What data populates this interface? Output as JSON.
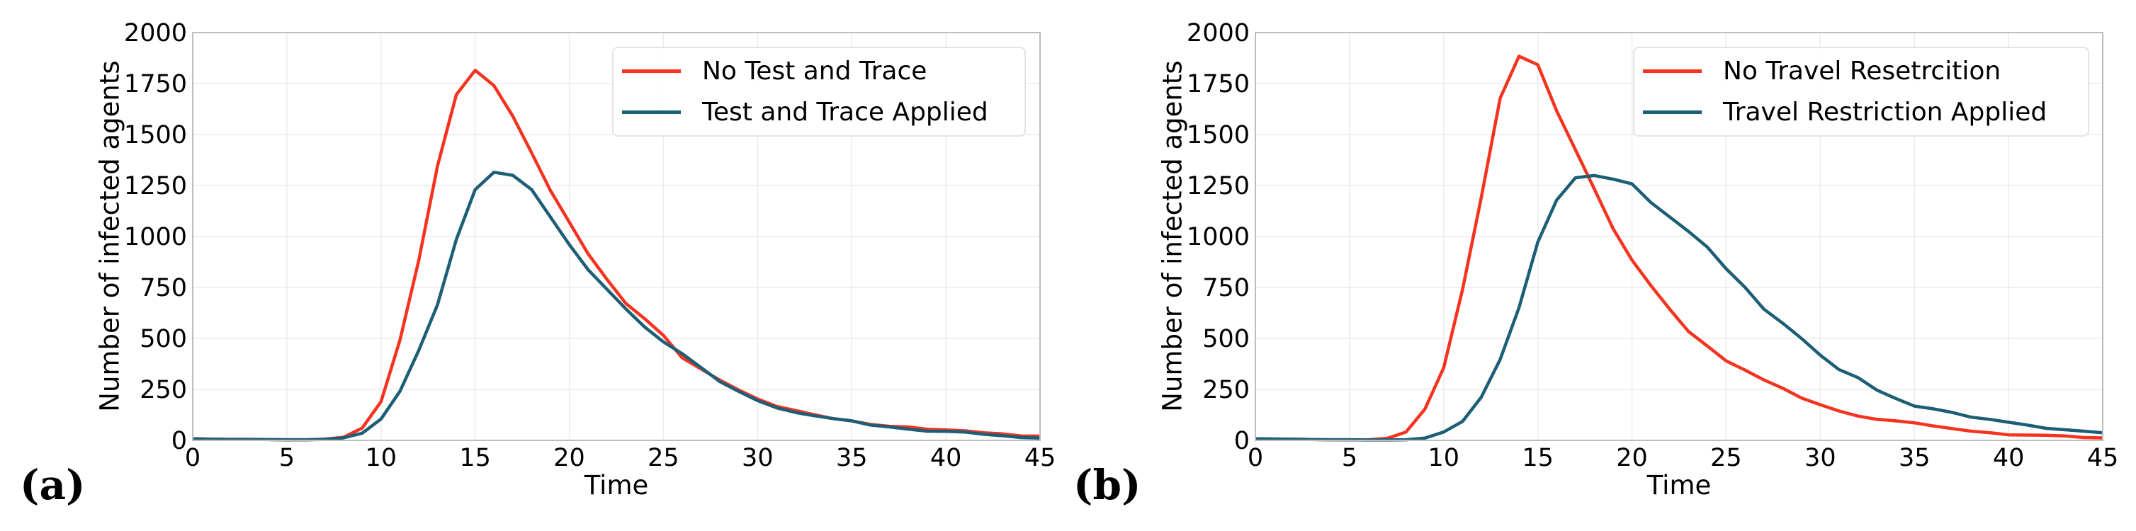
{
  "figure": {
    "panels": [
      {
        "label": "(a)",
        "xlabel": "Time",
        "ylabel": "Number of infected agents",
        "legend": [
          "No Test and Trace",
          "Test and Trace Applied"
        ]
      },
      {
        "label": "(b)",
        "xlabel": "Time",
        "ylabel": "Number of infected agents",
        "legend": [
          "No Travel Resetrcition",
          "Travel Restriction Applied"
        ]
      }
    ],
    "colors": {
      "series_red": "#f5331f",
      "series_teal": "#1d5e77",
      "grid": "#ebebeb",
      "spine": "#bdbdbd"
    }
  },
  "chart_data": [
    {
      "type": "line",
      "title": "(a)",
      "xlabel": "Time",
      "ylabel": "Number of infected agents",
      "xlim": [
        0,
        45
      ],
      "ylim": [
        0,
        2000
      ],
      "xticks": [
        0,
        5,
        10,
        15,
        20,
        25,
        30,
        35,
        40,
        45
      ],
      "yticks": [
        0,
        250,
        500,
        750,
        1000,
        1250,
        1500,
        1750,
        2000
      ],
      "grid": true,
      "legend_position": "upper right",
      "x": [
        0,
        1,
        2,
        3,
        4,
        5,
        6,
        7,
        8,
        9,
        10,
        11,
        12,
        13,
        14,
        15,
        16,
        17,
        18,
        19,
        20,
        21,
        22,
        23,
        24,
        25,
        26,
        27,
        28,
        29,
        30,
        31,
        32,
        33,
        34,
        35,
        36,
        37,
        38,
        39,
        40,
        41,
        42,
        43,
        44,
        45
      ],
      "series": [
        {
          "name": "No Test and Trace",
          "color": "#f5331f",
          "values": [
            8,
            6,
            5,
            5,
            4,
            3,
            3,
            6,
            15,
            60,
            190,
            490,
            880,
            1345,
            1695,
            1815,
            1740,
            1590,
            1410,
            1225,
            1070,
            915,
            790,
            672,
            597,
            515,
            405,
            350,
            295,
            247,
            203,
            167,
            147,
            126,
            107,
            96,
            78,
            69,
            66,
            55,
            51,
            47,
            37,
            32,
            22,
            21
          ]
        },
        {
          "name": "Test and Trace Applied",
          "color": "#1d5e77",
          "values": [
            8,
            6,
            5,
            5,
            4,
            3,
            3,
            5,
            12,
            35,
            105,
            240,
            440,
            665,
            985,
            1230,
            1315,
            1300,
            1230,
            1095,
            960,
            837,
            741,
            645,
            556,
            483,
            425,
            357,
            288,
            240,
            195,
            160,
            137,
            121,
            107,
            96,
            75,
            66,
            55,
            45,
            44,
            41,
            30,
            23,
            14,
            11
          ]
        }
      ]
    },
    {
      "type": "line",
      "title": "(b)",
      "xlabel": "Time",
      "ylabel": "Number of infected agents",
      "xlim": [
        0,
        45
      ],
      "ylim": [
        0,
        2000
      ],
      "xticks": [
        0,
        5,
        10,
        15,
        20,
        25,
        30,
        35,
        40,
        45
      ],
      "yticks": [
        0,
        250,
        500,
        750,
        1000,
        1250,
        1500,
        1750,
        2000
      ],
      "grid": true,
      "legend_position": "upper right",
      "x": [
        0,
        1,
        2,
        3,
        4,
        5,
        6,
        7,
        8,
        9,
        10,
        11,
        12,
        13,
        14,
        15,
        16,
        17,
        18,
        19,
        20,
        21,
        22,
        23,
        24,
        25,
        26,
        27,
        28,
        29,
        30,
        31,
        32,
        33,
        34,
        35,
        36,
        37,
        38,
        39,
        40,
        41,
        42,
        43,
        44,
        45
      ],
      "series": [
        {
          "name": "No Travel Resetrcition",
          "color": "#f5331f",
          "values": [
            8,
            6,
            5,
            4,
            3,
            3,
            3,
            10,
            41,
            153,
            356,
            740,
            1192,
            1678,
            1884,
            1842,
            1616,
            1425,
            1233,
            1038,
            884,
            760,
            644,
            534,
            463,
            390,
            345,
            297,
            256,
            208,
            175,
            144,
            119,
            103,
            96,
            86,
            71,
            58,
            45,
            38,
            27,
            26,
            25,
            22,
            14,
            12
          ]
        },
        {
          "name": "Travel Restriction Applied",
          "color": "#1d5e77",
          "values": [
            8,
            7,
            6,
            4,
            3,
            3,
            2,
            2,
            3,
            11,
            41,
            93,
            212,
            397,
            651,
            973,
            1178,
            1288,
            1299,
            1281,
            1258,
            1167,
            1096,
            1025,
            948,
            842,
            751,
            644,
            575,
            500,
            418,
            347,
            308,
            247,
            206,
            168,
            155,
            137,
            114,
            103,
            89,
            75,
            59,
            52,
            45,
            37
          ]
        }
      ]
    }
  ]
}
